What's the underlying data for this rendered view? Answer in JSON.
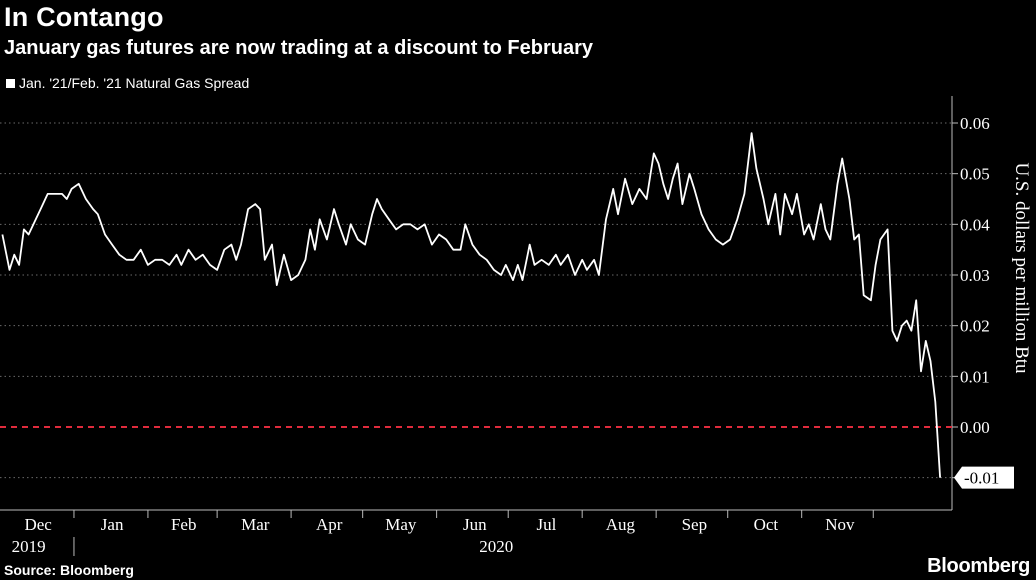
{
  "header": {
    "title": "In Contango",
    "subtitle": "January gas futures are now trading at a discount to February"
  },
  "footer": {
    "source": "Source: Bloomberg",
    "brand": "Bloomberg"
  },
  "chart_data": {
    "type": "line",
    "title": "In Contango",
    "subtitle": "January gas futures are now trading at a discount to February",
    "ylabel": "U.S. dollars per million Btu",
    "ylim": [
      -0.015,
      0.065
    ],
    "yticks": [
      0.06,
      0.05,
      0.04,
      0.03,
      0.02,
      0.01,
      0.0
    ],
    "ytick_labels": [
      "0.06",
      "0.05",
      "0.04",
      "0.03",
      "0.02",
      "0.01",
      "0.00"
    ],
    "xticks": [
      {
        "label": "Dec",
        "date": "2019-12-16"
      },
      {
        "label": "Jan",
        "date": "2020-01-16"
      },
      {
        "label": "Feb",
        "date": "2020-02-15"
      },
      {
        "label": "Mar",
        "date": "2020-03-16"
      },
      {
        "label": "Apr",
        "date": "2020-04-16"
      },
      {
        "label": "May",
        "date": "2020-05-16"
      },
      {
        "label": "Jun",
        "date": "2020-06-16"
      },
      {
        "label": "Jul",
        "date": "2020-07-16"
      },
      {
        "label": "Aug",
        "date": "2020-08-16"
      },
      {
        "label": "Sep",
        "date": "2020-09-16"
      },
      {
        "label": "Oct",
        "date": "2020-10-16"
      },
      {
        "label": "Nov",
        "date": "2020-11-16"
      }
    ],
    "year_labels": [
      {
        "label": "2019",
        "date": "2019-12-12"
      },
      {
        "label": "2020",
        "date": "2020-06-25"
      }
    ],
    "reference_line": {
      "y": 0.0,
      "color": "#e02b3c",
      "style": "dashed"
    },
    "last_value_label": "-0.01",
    "grid": true,
    "legend_position": "top-left",
    "series": [
      {
        "name": "Jan. '21/Feb. '21 Natural Gas Spread",
        "color": "#ffffff",
        "points": [
          [
            "2019-12-01",
            0.038
          ],
          [
            "2019-12-04",
            0.031
          ],
          [
            "2019-12-06",
            0.034
          ],
          [
            "2019-12-08",
            0.032
          ],
          [
            "2019-12-10",
            0.039
          ],
          [
            "2019-12-12",
            0.038
          ],
          [
            "2019-12-15",
            0.041
          ],
          [
            "2019-12-17",
            0.043
          ],
          [
            "2019-12-20",
            0.046
          ],
          [
            "2019-12-23",
            0.046
          ],
          [
            "2019-12-26",
            0.046
          ],
          [
            "2019-12-28",
            0.045
          ],
          [
            "2019-12-30",
            0.047
          ],
          [
            "2020-01-02",
            0.048
          ],
          [
            "2020-01-05",
            0.045
          ],
          [
            "2020-01-08",
            0.043
          ],
          [
            "2020-01-10",
            0.042
          ],
          [
            "2020-01-13",
            0.038
          ],
          [
            "2020-01-16",
            0.036
          ],
          [
            "2020-01-19",
            0.034
          ],
          [
            "2020-01-22",
            0.033
          ],
          [
            "2020-01-25",
            0.033
          ],
          [
            "2020-01-28",
            0.035
          ],
          [
            "2020-01-31",
            0.032
          ],
          [
            "2020-02-03",
            0.033
          ],
          [
            "2020-02-06",
            0.033
          ],
          [
            "2020-02-09",
            0.032
          ],
          [
            "2020-02-12",
            0.034
          ],
          [
            "2020-02-14",
            0.032
          ],
          [
            "2020-02-17",
            0.035
          ],
          [
            "2020-02-20",
            0.033
          ],
          [
            "2020-02-23",
            0.034
          ],
          [
            "2020-02-26",
            0.032
          ],
          [
            "2020-02-29",
            0.031
          ],
          [
            "2020-03-03",
            0.035
          ],
          [
            "2020-03-06",
            0.036
          ],
          [
            "2020-03-08",
            0.033
          ],
          [
            "2020-03-10",
            0.036
          ],
          [
            "2020-03-13",
            0.043
          ],
          [
            "2020-03-16",
            0.044
          ],
          [
            "2020-03-18",
            0.043
          ],
          [
            "2020-03-20",
            0.033
          ],
          [
            "2020-03-23",
            0.036
          ],
          [
            "2020-03-25",
            0.028
          ],
          [
            "2020-03-28",
            0.034
          ],
          [
            "2020-03-31",
            0.029
          ],
          [
            "2020-04-03",
            0.03
          ],
          [
            "2020-04-06",
            0.033
          ],
          [
            "2020-04-08",
            0.039
          ],
          [
            "2020-04-10",
            0.035
          ],
          [
            "2020-04-12",
            0.041
          ],
          [
            "2020-04-15",
            0.037
          ],
          [
            "2020-04-18",
            0.043
          ],
          [
            "2020-04-20",
            0.04
          ],
          [
            "2020-04-23",
            0.036
          ],
          [
            "2020-04-25",
            0.04
          ],
          [
            "2020-04-28",
            0.037
          ],
          [
            "2020-05-01",
            0.036
          ],
          [
            "2020-05-04",
            0.042
          ],
          [
            "2020-05-06",
            0.045
          ],
          [
            "2020-05-08",
            0.043
          ],
          [
            "2020-05-11",
            0.041
          ],
          [
            "2020-05-14",
            0.039
          ],
          [
            "2020-05-17",
            0.04
          ],
          [
            "2020-05-20",
            0.04
          ],
          [
            "2020-05-23",
            0.039
          ],
          [
            "2020-05-26",
            0.04
          ],
          [
            "2020-05-29",
            0.036
          ],
          [
            "2020-06-01",
            0.038
          ],
          [
            "2020-06-04",
            0.037
          ],
          [
            "2020-06-07",
            0.035
          ],
          [
            "2020-06-10",
            0.035
          ],
          [
            "2020-06-12",
            0.04
          ],
          [
            "2020-06-15",
            0.036
          ],
          [
            "2020-06-18",
            0.034
          ],
          [
            "2020-06-21",
            0.033
          ],
          [
            "2020-06-24",
            0.031
          ],
          [
            "2020-06-27",
            0.03
          ],
          [
            "2020-06-29",
            0.032
          ],
          [
            "2020-07-02",
            0.029
          ],
          [
            "2020-07-04",
            0.032
          ],
          [
            "2020-07-06",
            0.029
          ],
          [
            "2020-07-09",
            0.036
          ],
          [
            "2020-07-11",
            0.032
          ],
          [
            "2020-07-14",
            0.033
          ],
          [
            "2020-07-17",
            0.032
          ],
          [
            "2020-07-20",
            0.034
          ],
          [
            "2020-07-22",
            0.032
          ],
          [
            "2020-07-25",
            0.034
          ],
          [
            "2020-07-28",
            0.03
          ],
          [
            "2020-07-31",
            0.033
          ],
          [
            "2020-08-02",
            0.031
          ],
          [
            "2020-08-05",
            0.033
          ],
          [
            "2020-08-07",
            0.03
          ],
          [
            "2020-08-10",
            0.041
          ],
          [
            "2020-08-13",
            0.047
          ],
          [
            "2020-08-15",
            0.042
          ],
          [
            "2020-08-18",
            0.049
          ],
          [
            "2020-08-21",
            0.044
          ],
          [
            "2020-08-24",
            0.047
          ],
          [
            "2020-08-27",
            0.045
          ],
          [
            "2020-08-30",
            0.054
          ],
          [
            "2020-09-01",
            0.052
          ],
          [
            "2020-09-03",
            0.048
          ],
          [
            "2020-09-05",
            0.045
          ],
          [
            "2020-09-07",
            0.049
          ],
          [
            "2020-09-09",
            0.052
          ],
          [
            "2020-09-11",
            0.044
          ],
          [
            "2020-09-14",
            0.05
          ],
          [
            "2020-09-16",
            0.047
          ],
          [
            "2020-09-19",
            0.042
          ],
          [
            "2020-09-22",
            0.039
          ],
          [
            "2020-09-25",
            0.037
          ],
          [
            "2020-09-28",
            0.036
          ],
          [
            "2020-10-01",
            0.037
          ],
          [
            "2020-10-04",
            0.041
          ],
          [
            "2020-10-07",
            0.046
          ],
          [
            "2020-10-10",
            0.058
          ],
          [
            "2020-10-12",
            0.051
          ],
          [
            "2020-10-15",
            0.045
          ],
          [
            "2020-10-17",
            0.04
          ],
          [
            "2020-10-20",
            0.046
          ],
          [
            "2020-10-22",
            0.038
          ],
          [
            "2020-10-24",
            0.046
          ],
          [
            "2020-10-27",
            0.042
          ],
          [
            "2020-10-29",
            0.046
          ],
          [
            "2020-11-01",
            0.038
          ],
          [
            "2020-11-03",
            0.04
          ],
          [
            "2020-11-05",
            0.037
          ],
          [
            "2020-11-08",
            0.044
          ],
          [
            "2020-11-10",
            0.039
          ],
          [
            "2020-11-12",
            0.037
          ],
          [
            "2020-11-15",
            0.048
          ],
          [
            "2020-11-17",
            0.053
          ],
          [
            "2020-11-20",
            0.045
          ],
          [
            "2020-11-22",
            0.037
          ],
          [
            "2020-11-24",
            0.038
          ],
          [
            "2020-11-26",
            0.026
          ],
          [
            "2020-11-29",
            0.025
          ],
          [
            "2020-12-01",
            0.032
          ],
          [
            "2020-12-03",
            0.037
          ],
          [
            "2020-12-06",
            0.039
          ],
          [
            "2020-12-08",
            0.019
          ],
          [
            "2020-12-10",
            0.017
          ],
          [
            "2020-12-12",
            0.02
          ],
          [
            "2020-12-14",
            0.021
          ],
          [
            "2020-12-16",
            0.019
          ],
          [
            "2020-12-18",
            0.025
          ],
          [
            "2020-12-20",
            0.011
          ],
          [
            "2020-12-22",
            0.017
          ],
          [
            "2020-12-24",
            0.013
          ],
          [
            "2020-12-26",
            0.005
          ],
          [
            "2020-12-28",
            -0.01
          ]
        ]
      }
    ]
  }
}
